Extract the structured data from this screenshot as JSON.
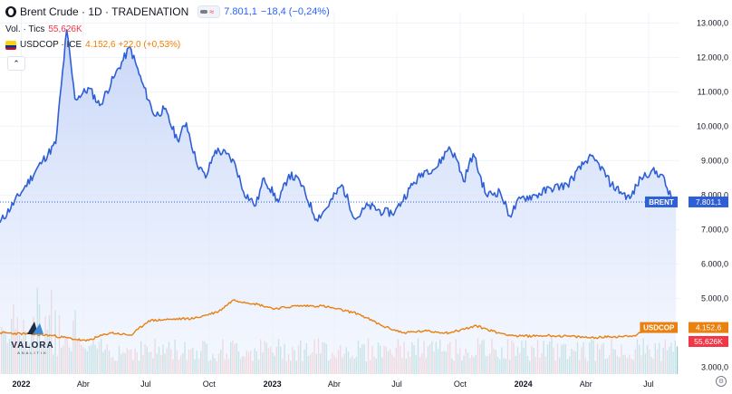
{
  "header": {
    "symbol_title": "Brent Crude · 1D · TRADENATION",
    "price": "7.801,1",
    "change": "−18,4 (−0,24%)",
    "vol_label": "Vol. · Tics",
    "vol_value": "55,626K",
    "compare_symbol": "USDCOP · ICE",
    "compare_value": "4.152,6 +22,0 (+0,53%)",
    "collapse_glyph": "⌃"
  },
  "logo": {
    "name": "VALORA",
    "tagline": "ANALITIK"
  },
  "colors": {
    "brent_line": "#2f5fd6",
    "brent_fill_top": "#c5d4f7",
    "usdcop_line": "#e8810f",
    "volume_up": "#90cdc3",
    "volume_down": "#f7b2b0",
    "axis_text": "#131722"
  },
  "chart_data": {
    "type": "line",
    "y_axis": {
      "ticks": [
        "13.000,0",
        "12.000,0",
        "11.000,0",
        "10.000,0",
        "9.000,0",
        "8.000,0",
        "7.000,0",
        "6.000,0",
        "5.000,0",
        "3.000,0"
      ],
      "tick_values": [
        13000,
        12000,
        11000,
        10000,
        9000,
        8000,
        7000,
        6000,
        5000,
        3000
      ],
      "range": [
        2800,
        13300
      ]
    },
    "x_axis": {
      "range": [
        "2021-12-01",
        "2024-08-15"
      ],
      "ticks": [
        {
          "label": "2022",
          "date": "2022-01-01",
          "bold": true
        },
        {
          "label": "Abr",
          "date": "2022-04-01",
          "bold": false
        },
        {
          "label": "Jul",
          "date": "2022-07-01",
          "bold": false
        },
        {
          "label": "Oct",
          "date": "2022-10-01",
          "bold": false
        },
        {
          "label": "2023",
          "date": "2023-01-01",
          "bold": true
        },
        {
          "label": "Abr",
          "date": "2023-04-01",
          "bold": false
        },
        {
          "label": "Jul",
          "date": "2023-07-01",
          "bold": false
        },
        {
          "label": "Oct",
          "date": "2023-10-01",
          "bold": false
        },
        {
          "label": "2024",
          "date": "2024-01-01",
          "bold": true
        },
        {
          "label": "Abr",
          "date": "2024-04-01",
          "bold": false
        },
        {
          "label": "Jul",
          "date": "2024-07-01",
          "bold": false
        }
      ]
    },
    "series": [
      {
        "name": "BRENT",
        "last_label": "7.801,1",
        "last_value": 7801.1,
        "x": [
          "2021-12-01",
          "2022-01-05",
          "2022-02-01",
          "2022-02-20",
          "2022-03-08",
          "2022-03-20",
          "2022-04-10",
          "2022-04-25",
          "2022-05-15",
          "2022-06-08",
          "2022-06-25",
          "2022-07-14",
          "2022-07-28",
          "2022-08-16",
          "2022-08-29",
          "2022-09-12",
          "2022-09-26",
          "2022-10-10",
          "2022-10-26",
          "2022-11-08",
          "2022-11-20",
          "2022-12-08",
          "2022-12-20",
          "2023-01-10",
          "2023-01-25",
          "2023-02-10",
          "2023-03-06",
          "2023-03-20",
          "2023-04-12",
          "2023-05-02",
          "2023-05-20",
          "2023-06-12",
          "2023-06-28",
          "2023-07-20",
          "2023-08-10",
          "2023-08-28",
          "2023-09-15",
          "2023-09-27",
          "2023-10-06",
          "2023-10-20",
          "2023-11-08",
          "2023-11-28",
          "2023-12-12",
          "2023-12-28",
          "2024-01-20",
          "2024-02-10",
          "2024-03-05",
          "2024-04-05",
          "2024-04-20",
          "2024-05-08",
          "2024-06-04",
          "2024-06-20",
          "2024-07-05",
          "2024-07-20",
          "2024-08-05",
          "2024-08-10"
        ],
        "values": [
          7200,
          8200,
          9000,
          9500,
          12800,
          10800,
          11100,
          10600,
          11400,
          12300,
          11300,
          10300,
          10500,
          9600,
          10100,
          9000,
          8500,
          9300,
          9200,
          8900,
          8100,
          7700,
          8500,
          7800,
          8600,
          8400,
          7300,
          7600,
          8300,
          7300,
          7700,
          7500,
          7500,
          8200,
          8700,
          8800,
          9400,
          9000,
          8400,
          9200,
          8000,
          8100,
          7400,
          7900,
          8000,
          8200,
          8300,
          9100,
          8900,
          8300,
          7900,
          8500,
          8700,
          8600,
          7800,
          7801
        ]
      },
      {
        "name": "USDCOP",
        "last_label": "4.152,6",
        "last_value": 4152.6,
        "x": [
          "2021-12-01",
          "2022-01-15",
          "2022-02-15",
          "2022-04-05",
          "2022-05-10",
          "2022-06-10",
          "2022-07-05",
          "2022-08-05",
          "2022-09-10",
          "2022-10-15",
          "2022-11-05",
          "2022-12-05",
          "2023-01-05",
          "2023-02-05",
          "2023-03-15",
          "2023-05-05",
          "2023-06-10",
          "2023-07-10",
          "2023-08-10",
          "2023-09-15",
          "2023-10-25",
          "2023-11-25",
          "2023-12-25",
          "2024-02-05",
          "2024-03-05",
          "2024-04-05",
          "2024-05-05",
          "2024-06-10",
          "2024-07-05",
          "2024-08-10"
        ],
        "values": [
          4000,
          3960,
          3920,
          3760,
          4000,
          3930,
          4350,
          4390,
          4420,
          4620,
          4950,
          4850,
          4700,
          4780,
          4780,
          4560,
          4200,
          4000,
          4050,
          4000,
          4200,
          4000,
          3900,
          3920,
          3900,
          3860,
          3880,
          3920,
          4100,
          4152.6
        ]
      }
    ],
    "volume": {
      "name": "Vol. · Tics",
      "last_label": "55,626K",
      "last_value": 55626
    }
  }
}
